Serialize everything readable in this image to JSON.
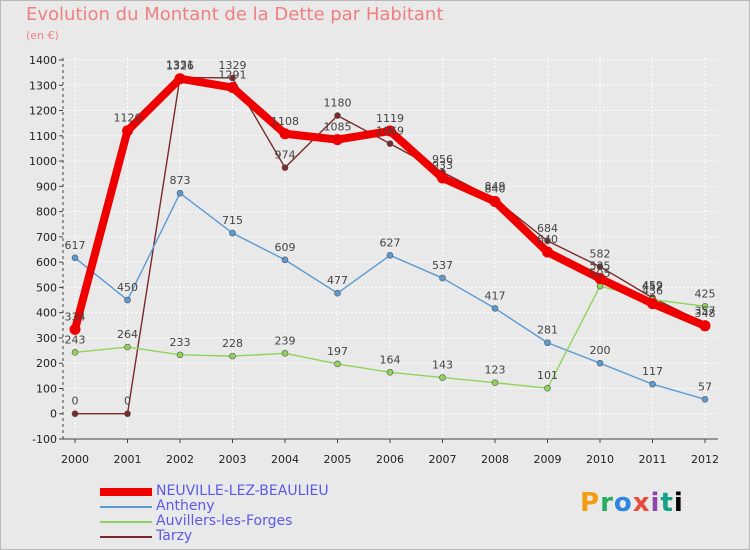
{
  "title": "Evolution du Montant de la Dette par Habitant",
  "subtitle": "(en €)",
  "logo_text": "Proxiti",
  "chart_data": {
    "type": "line",
    "title": "Evolution du Montant de la Dette par Habitant",
    "ylabel": "(en €)",
    "x": [
      2000,
      2001,
      2002,
      2003,
      2004,
      2005,
      2006,
      2007,
      2008,
      2009,
      2010,
      2011,
      2012
    ],
    "ylim": [
      -100,
      1400
    ],
    "yticks": [
      -100,
      0,
      100,
      200,
      300,
      400,
      500,
      600,
      700,
      800,
      900,
      1000,
      1100,
      1200,
      1300,
      1400
    ],
    "grid": true,
    "legend_position": "bottom-left",
    "series": [
      {
        "name": "NEUVILLE-LEZ-BEAULIEU",
        "color": "#ee0000",
        "values": [
          334,
          1120,
          1326,
          1291,
          1108,
          1085,
          1119,
          933,
          840,
          640,
          535,
          436,
          348
        ]
      },
      {
        "name": "Antheny",
        "color": "#5b9bd5",
        "values": [
          617,
          450,
          873,
          715,
          609,
          477,
          627,
          537,
          417,
          281,
          200,
          117,
          57
        ]
      },
      {
        "name": "Auvillers-les-Forges",
        "color": "#8fd45a",
        "values": [
          243,
          264,
          233,
          228,
          239,
          197,
          164,
          143,
          123,
          101,
          505,
          452,
          425
        ]
      },
      {
        "name": "Tarzy",
        "color": "#7a2a2a",
        "values": [
          0,
          0,
          1331,
          1329,
          974,
          1180,
          1069,
          956,
          849,
          684,
          582,
          459,
          357
        ]
      }
    ]
  }
}
